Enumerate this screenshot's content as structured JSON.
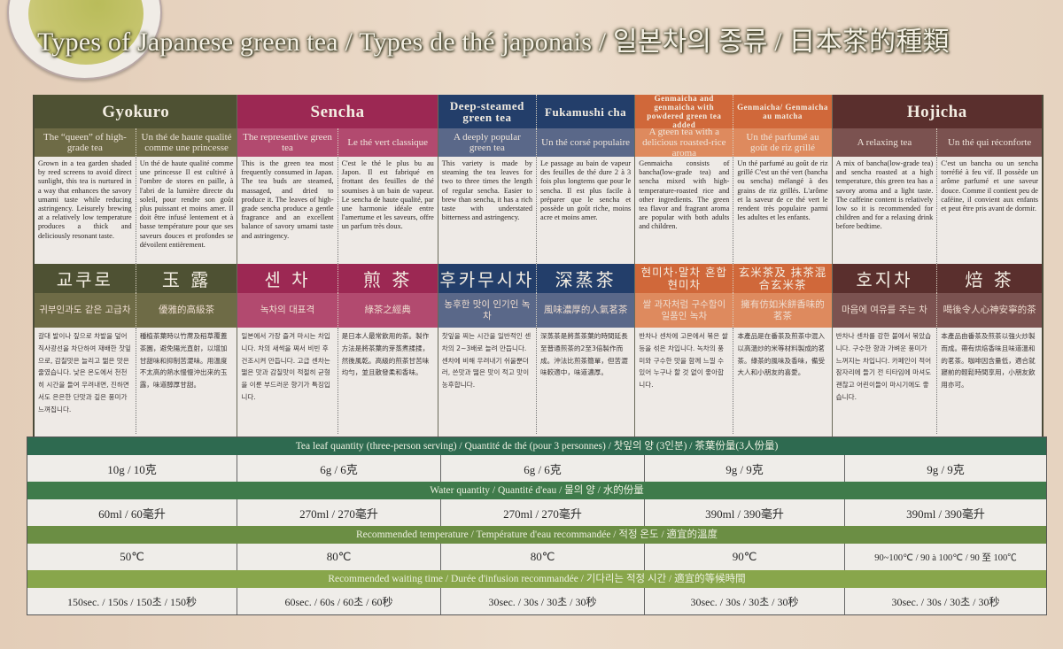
{
  "title": "Types of Japanese green tea / Types de thé japonais / 일본차의 종류 / 日本茶的種類",
  "teas": [
    {
      "titles": [
        "Gyokuro"
      ],
      "color": "#4e5133",
      "sub_color": "#6e6b46",
      "title_size": "",
      "en_sub": "The “queen” of high-grade tea",
      "fr_sub": "Un thé de haute qualité comme une princesse",
      "en_desc": "Grown in a tea garden shaded by reed screens to avoid direct sunlight, this tea is nurtured in a way that enhances the savory umami taste while reducing astringency. Leisurely brewing at a relatively low temperature produces a thick and deliciously resonant taste.",
      "fr_desc": "Un thé de haute qualité comme une princesse Il est cultivé à l'ombre de stores en paille, à l'abri de la lumière directe du soleil, pour rendre son goût plus puissant et moins amer. Il doit être infusé lentement et à basse température pour que ses saveurs douces et profondes se dévoilent entièrement.",
      "ko_name": "교쿠로",
      "zh_name": "玉 露",
      "cjk_size": "",
      "ko_sub": "귀부인과도 같은 고급차",
      "zh_sub": "優雅的高級茶",
      "ko_desc": "갈대 발이나 짚으로 차밭을 덮어 직사광선을 차단하여 재배한 찻잎으로, 감칠맛은 늘리고 떫은 맛은 줄였습니다. 낮은 온도에서 천천히 시간을 들여 우려내면, 진하면서도 은은한 단맛과 깊은 풍미가 느껴집니다.",
      "zh_desc": "種植茶葉時以竹蓆及稻草覆蓋茶園，避免陽光直射，以增加甘甜味和抑制苦澀味。用溫度不太高的熱水慢慢沖出來的玉露，味道醇厚甘甜。",
      "leaf": "10g / 10克",
      "water": "60ml / 60毫升",
      "temp": "50℃",
      "time": "150sec. / 150s / 150초 / 150秒"
    },
    {
      "titles": [
        "Sencha"
      ],
      "color": "#9c2853",
      "sub_color": "#b24a6f",
      "title_size": "",
      "en_sub": "The representive green tea",
      "fr_sub": "Le thé vert classique",
      "en_desc": "This is the green tea most frequently consumed in Japan. The tea buds are steamed, massaged, and dried to produce it. The leaves of high-grade sencha produce a gentle fragrance and an excellent balance of savory umami taste and astringency.",
      "fr_desc": "C'est le thé le plus bu au Japon. Il est fabriqué en frottant des feuilles de thé soumises à un bain de vapeur. Le sencha de haute qualité, par une harmonie idéale entre l'amertume et les saveurs, offre un parfum très doux.",
      "ko_name": "센 차",
      "zh_name": "煎 茶",
      "cjk_size": "",
      "ko_sub": "녹차의 대표격",
      "zh_sub": "綠茶之經典",
      "ko_desc": "일본에서 가장 즐겨 마시는 차입니다. 차의 새싹을 쪄서 비빈 후 건조시켜 만듭니다. 고급 센차는 떫은 맛과 감칠맛이 적절히 균형을 이룬 부드러운 향기가 특징입니다.",
      "zh_desc": "是日本人最常飲用的茶。製作方法是將茶葉的芽蒸煮揉揉，然後風乾。高級的煎茶甘苦味均勻，並且散發柔和香味。",
      "leaf": "6g / 6克",
      "water": "270ml / 270毫升",
      "temp": "80℃",
      "time": "60sec. / 60s / 60초 / 60秒"
    },
    {
      "titles": [
        "Deep-steamed green tea",
        "Fukamushi cha"
      ],
      "color": "#233e6a",
      "sub_color": "#5a6889",
      "title_size": "small",
      "en_sub": "A deeply popular green tea",
      "fr_sub": "Un thé corsé populaire",
      "en_desc": "This variety is made by steaming the tea leaves for two to three times the length of regular sencha. Easier to brew than sencha, it has a rich taste with understated bitterness and astringency.",
      "fr_desc": "Le passage au bain de vapeur des feuilles de thé dure 2 à 3 fois plus longtems que pour le sencha. Il est plus facile à préparer que le sencha et possède un goût riche, moins acre et moins amer.",
      "ko_name": "후카무시차",
      "zh_name": "深蒸茶",
      "cjk_size": "",
      "ko_sub": "농후한 맛이 인기인 녹차",
      "zh_sub": "風味濃厚的人氣茗茶",
      "ko_desc": "찻잎을 찌는 시간을 일반적인 센차의 2~3배로 늘려 만듭니다. 센차에 비해 우려내기 쉬울뿐더러, 쓴맛과 떫은 맛이 적고 맛이 농후합니다.",
      "zh_desc": "深蒸茶是將蒸茶葉的時間延長至普通煎茶的2至3倍製作而成。沖法比煎茶簡單，但苦澀味較適中，味道濃厚。",
      "leaf": "6g / 6克",
      "water": "270ml / 270毫升",
      "temp": "80℃",
      "time": "30sec. / 30s / 30초 / 30秒"
    },
    {
      "titles": [
        "Genmaicha and genmaicha with powdered green tea added",
        "Genmaicha/ Genmaicha au matcha"
      ],
      "color": "#d0683a",
      "sub_color": "#de8a5e",
      "title_size": "tiny",
      "en_sub": "A gteen tea with a delicious roasted-rice aroma",
      "fr_sub": "Un thé parfumé au goût de riz grillé",
      "en_desc": "Genmaicha consists of bancha(low-grade tea) and sencha mixed with high-temperature-roasted rice and other ingredients. The green tea flavor and fragrant aroma are popular with both adults and children.",
      "fr_desc": "Un thé parfumé au goût de riz grillé C'est un thé vert (bancha ou sencha) mélangé à des grains de riz grillés. L'arôme et la saveur de ce thé vert le rendent très populaire parmi les adultes et les enfants.",
      "ko_name": "현미차·말차 혼합 현미차",
      "zh_name": "玄米茶及 抹茶混合玄米茶",
      "cjk_size": "small",
      "ko_sub": "쌀 과자처럼 구수함이 일품인 녹차",
      "zh_sub": "擁有仿如米餅香味的茗茶",
      "ko_desc": "반차나 센차에 고온에서 볶은 쌀 등을 섞은 차입니다. 녹차의 풍미와 구수한 맛을 함께 느낄 수 있어 누구나 할 것 없이 좋아합니다.",
      "zh_desc": "本產品是在番茶及煎茶中混入以高溫炒的米等材料製成的茗茶。綠茶的風味及香味，備受大人和小朋友的喜愛。",
      "leaf": "9g / 9克",
      "water": "390ml / 390毫升",
      "temp": "90℃",
      "time": "30sec. / 30s / 30초 / 30秒"
    },
    {
      "titles": [
        "Hojicha"
      ],
      "color": "#5a2f2d",
      "sub_color": "#7b5250",
      "title_size": "",
      "en_sub": "A relaxing tea",
      "fr_sub": "Un thé qui réconforte",
      "en_desc": "A mix of bancha(low-grade tea) and sencha roasted at a high temperature, this green tea has a savory aroma and a light taste. The caffeine content is relatively low so it is recommended for children and for a relaxing drink before bedtime.",
      "fr_desc": "C'est un bancha ou un sencha torréfié à feu vif. Il possède un arôme parfumé et une saveur douce. Comme il contient peu de caféine, il convient aux enfants et peut être pris avant de dormir.",
      "ko_name": "호지차",
      "zh_name": "焙 茶",
      "cjk_size": "",
      "ko_sub": "마음에 여유를 주는 차",
      "zh_sub": "喝後令人心神安寧的茶",
      "ko_desc": "반차나 센차를 강한 불에서 볶았습니다. 구수한 향과 가벼운 풍미가 느껴지는 차입니다. 카페인이 적어 잠자리에 들기 전 티타임에 마셔도 괜찮고 어린이들이 마시기에도 좋습니다.",
      "zh_desc": "本產品由番茶及煎茶以強火炒製而成。帶有烘焙香味且味道溫和的茗茶。咖啡因含量低，適合就寢前的輕鬆時間享用，小朋友飲用亦可。",
      "leaf": "9g / 9克",
      "water": "390ml / 390毫升",
      "temp": "90~100℃ / 90 à 100℃ / 90 至 100℃",
      "time": "30sec. / 30s / 30초 / 30秒"
    }
  ],
  "bands": [
    {
      "key": "leaf",
      "label": "Tea leaf quantity (three-person serving) / Quantité de thé (pour 3 personnes) / 찻잎의 양 (3인분) / 茶葉份量(3人份量)",
      "color": "#2e6a50"
    },
    {
      "key": "water",
      "label": "Water quantity / Quantité d'eau / 물의 양 / 水的份量",
      "color": "#3f7b4b"
    },
    {
      "key": "temp",
      "label": "Recommended temperature / Température d'eau recommandée / 적정 온도 / 適宜的溫度",
      "color": "#6b8e44"
    },
    {
      "key": "time",
      "label": "Recommended waiting time / Durée d'infusion recommandée / 기다리는 적정 시간 / 適宜的等候時間",
      "color": "#88a64b"
    }
  ]
}
